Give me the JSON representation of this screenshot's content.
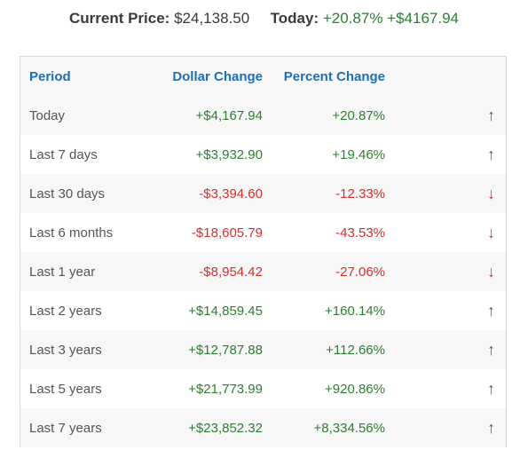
{
  "summary": {
    "current_price_label": "Current Price:",
    "current_price_value": "$24,138.50",
    "today_label": "Today:",
    "today_percent": "+20.87%",
    "today_dollar": "+$4167.94"
  },
  "table": {
    "headers": {
      "period": "Period",
      "dollar": "Dollar Change",
      "percent": "Percent Change"
    },
    "rows": [
      {
        "period": "Today",
        "dollar": "+$4,167.94",
        "percent": "+20.87%",
        "direction": "up",
        "arrow": "↑"
      },
      {
        "period": "Last 7 days",
        "dollar": "+$3,932.90",
        "percent": "+19.46%",
        "direction": "up",
        "arrow": "↑"
      },
      {
        "period": "Last 30 days",
        "dollar": "-$3,394.60",
        "percent": "-12.33%",
        "direction": "down",
        "arrow": "↓"
      },
      {
        "period": "Last 6 months",
        "dollar": "-$18,605.79",
        "percent": "-43.53%",
        "direction": "down",
        "arrow": "↓"
      },
      {
        "period": "Last 1 year",
        "dollar": "-$8,954.42",
        "percent": "-27.06%",
        "direction": "down",
        "arrow": "↓"
      },
      {
        "period": "Last 2 years",
        "dollar": "+$14,859.45",
        "percent": "+160.14%",
        "direction": "up",
        "arrow": "↑"
      },
      {
        "period": "Last 3 years",
        "dollar": "+$12,787.88",
        "percent": "+112.66%",
        "direction": "up",
        "arrow": "↑"
      },
      {
        "period": "Last 5 years",
        "dollar": "+$21,773.99",
        "percent": "+920.86%",
        "direction": "up",
        "arrow": "↑"
      },
      {
        "period": "Last 7 years",
        "dollar": "+$23,852.32",
        "percent": "+8,334.56%",
        "direction": "up",
        "arrow": "↑"
      }
    ]
  },
  "colors": {
    "positive": "#2e7d32",
    "negative": "#d32f2f",
    "header_text": "#1f6fb2"
  }
}
